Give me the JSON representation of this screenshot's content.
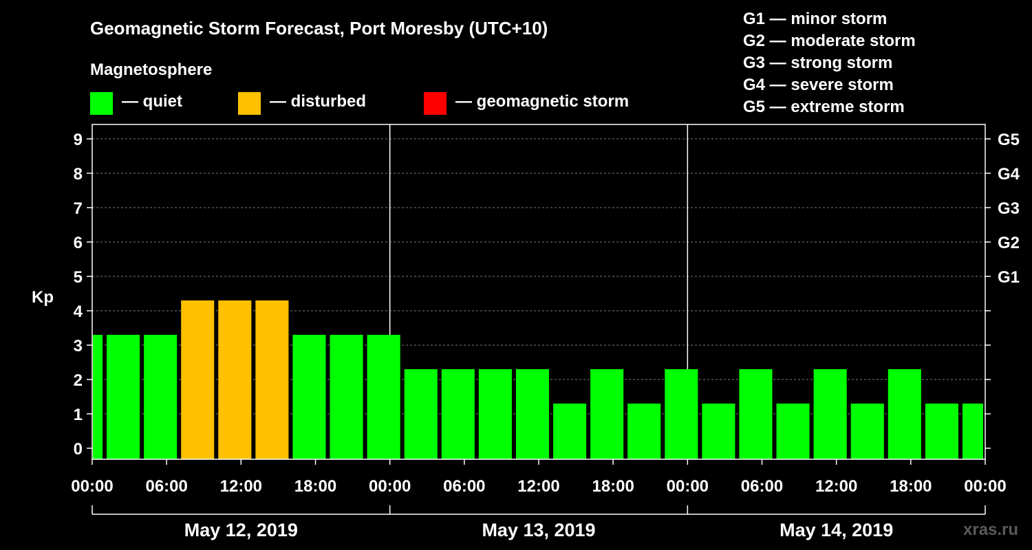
{
  "title": "Geomagnetic Storm Forecast, Port Moresby (UTC+10)",
  "subtitle": "Magnetosphere",
  "legend": [
    {
      "label": "— quiet",
      "color": "#00ff00"
    },
    {
      "label": "— disturbed",
      "color": "#ffc000"
    },
    {
      "label": "— geomagnetic storm",
      "color": "#ff0000"
    }
  ],
  "g_scale": [
    "G1 — minor storm",
    "G2 — moderate storm",
    "G3 — strong storm",
    "G4 — severe storm",
    "G5 — extreme storm"
  ],
  "brand": "xras.ru",
  "chart_data": {
    "type": "bar",
    "ylabel": "Kp",
    "ylim": [
      0,
      9
    ],
    "yticks": [
      "0",
      "1",
      "2",
      "3",
      "4",
      "5",
      "6",
      "7",
      "8",
      "9"
    ],
    "y2_labels": [
      {
        "value": 5,
        "label": "G1"
      },
      {
        "value": 6,
        "label": "G2"
      },
      {
        "value": 7,
        "label": "G3"
      },
      {
        "value": 8,
        "label": "G4"
      },
      {
        "value": 9,
        "label": "G5"
      }
    ],
    "xticks": [
      "00:00",
      "06:00",
      "12:00",
      "18:00",
      "00:00",
      "06:00",
      "12:00",
      "18:00",
      "00:00",
      "06:00",
      "12:00",
      "18:00",
      "00:00"
    ],
    "dates": [
      "May 12, 2019",
      "May 13, 2019",
      "May 14, 2019"
    ],
    "grid": "horizontal dashed",
    "colors": {
      "quiet": "#00ff00",
      "disturbed": "#ffc000",
      "storm": "#ff0000"
    },
    "bars": [
      {
        "start": "May 12 00:00",
        "end": "May 12 01:00",
        "kp": 3,
        "level": "quiet"
      },
      {
        "start": "May 12 01:00",
        "end": "May 12 04:00",
        "kp": 3,
        "level": "quiet"
      },
      {
        "start": "May 12 04:00",
        "end": "May 12 07:00",
        "kp": 3,
        "level": "quiet"
      },
      {
        "start": "May 12 07:00",
        "end": "May 12 10:00",
        "kp": 4,
        "level": "disturbed"
      },
      {
        "start": "May 12 10:00",
        "end": "May 12 13:00",
        "kp": 4,
        "level": "disturbed"
      },
      {
        "start": "May 12 13:00",
        "end": "May 12 16:00",
        "kp": 4,
        "level": "disturbed"
      },
      {
        "start": "May 12 16:00",
        "end": "May 12 19:00",
        "kp": 3,
        "level": "quiet"
      },
      {
        "start": "May 12 19:00",
        "end": "May 12 22:00",
        "kp": 3,
        "level": "quiet"
      },
      {
        "start": "May 12 22:00",
        "end": "May 13 01:00",
        "kp": 3,
        "level": "quiet"
      },
      {
        "start": "May 13 01:00",
        "end": "May 13 04:00",
        "kp": 2,
        "level": "quiet"
      },
      {
        "start": "May 13 04:00",
        "end": "May 13 07:00",
        "kp": 2,
        "level": "quiet"
      },
      {
        "start": "May 13 07:00",
        "end": "May 13 10:00",
        "kp": 2,
        "level": "quiet"
      },
      {
        "start": "May 13 10:00",
        "end": "May 13 13:00",
        "kp": 2,
        "level": "quiet"
      },
      {
        "start": "May 13 13:00",
        "end": "May 13 16:00",
        "kp": 1,
        "level": "quiet"
      },
      {
        "start": "May 13 16:00",
        "end": "May 13 19:00",
        "kp": 2,
        "level": "quiet"
      },
      {
        "start": "May 13 19:00",
        "end": "May 13 22:00",
        "kp": 1,
        "level": "quiet"
      },
      {
        "start": "May 13 22:00",
        "end": "May 14 01:00",
        "kp": 2,
        "level": "quiet"
      },
      {
        "start": "May 14 01:00",
        "end": "May 14 04:00",
        "kp": 1,
        "level": "quiet"
      },
      {
        "start": "May 14 04:00",
        "end": "May 14 07:00",
        "kp": 2,
        "level": "quiet"
      },
      {
        "start": "May 14 07:00",
        "end": "May 14 10:00",
        "kp": 1,
        "level": "quiet"
      },
      {
        "start": "May 14 10:00",
        "end": "May 14 13:00",
        "kp": 2,
        "level": "quiet"
      },
      {
        "start": "May 14 13:00",
        "end": "May 14 16:00",
        "kp": 1,
        "level": "quiet"
      },
      {
        "start": "May 14 16:00",
        "end": "May 14 19:00",
        "kp": 2,
        "level": "quiet"
      },
      {
        "start": "May 14 19:00",
        "end": "May 14 22:00",
        "kp": 1,
        "level": "quiet"
      },
      {
        "start": "May 14 22:00",
        "end": "May 15 00:00",
        "kp": 1,
        "level": "quiet"
      }
    ]
  }
}
